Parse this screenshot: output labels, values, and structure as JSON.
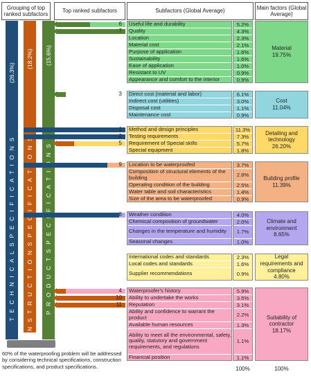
{
  "headers": {
    "grouping": "Grouping of top ranked subfactors",
    "top_ranked": "Top ranked subfactors",
    "subfactors": "Subfactors (Global Average)",
    "main": "Main factors (Global Average)"
  },
  "specs": [
    {
      "label": "T E C H N I C A L   S P E C I F I C A T I O N S",
      "pct": "(26.3%)",
      "color": "#1f4e79"
    },
    {
      "label": "C O N S T R U C T I O N   S P E C I F I C A T I O N S",
      "pct": "(18.2%)",
      "color": "#c55a11"
    },
    {
      "label": "P R O D U C T   S P E C I F I C A T I O N S",
      "pct": "(15.6%)",
      "color": "#548235"
    }
  ],
  "groups": [
    {
      "id": "material",
      "color": "#7ed88a",
      "main": "Material\n19.75%",
      "rows": [
        {
          "name": "Useful life and durability",
          "pct": "5.2%",
          "rank": "6"
        },
        {
          "name": "Quality",
          "pct": "4.3%",
          "rank": "7"
        },
        {
          "name": "Location",
          "pct": "2.3%"
        },
        {
          "name": "Material cost",
          "pct": "2.1%"
        },
        {
          "name": "Purpose of application",
          "pct": "1.6%"
        },
        {
          "name": "Sustainability",
          "pct": "1.6%"
        },
        {
          "name": "Ease of application",
          "pct": "1.0%"
        },
        {
          "name": "Resistant to UV",
          "pct": "0.9%"
        },
        {
          "name": "Appearance and comfort to the interior",
          "pct": "0.9%"
        }
      ]
    },
    {
      "id": "cost",
      "color": "#8fd6de",
      "main": "Cost\n11.04%",
      "rows": [
        {
          "name": "Direct cost (material and labor)",
          "pct": "6.1%",
          "rank": "3"
        },
        {
          "name": "Indirect cost (utilities)",
          "pct": "3.0%"
        },
        {
          "name": "Disposal cost",
          "pct": "1.1%"
        },
        {
          "name": "Maintenance cost",
          "pct": "0.9%"
        }
      ]
    },
    {
      "id": "detailing",
      "color": "#ffd966",
      "main": "Detailing and\ntechnology\n26.20%",
      "rows": [
        {
          "name": "Method and design principles",
          "pct": "11.3%",
          "rank": "1"
        },
        {
          "name": "Testing requirements",
          "pct": "7.3%",
          "rank": "2"
        },
        {
          "name": "Requirement of Special skills",
          "pct": "5.7%",
          "rank": "5"
        },
        {
          "name": "Special equipment",
          "pct": "1.8%"
        }
      ]
    },
    {
      "id": "building",
      "color": "#f4b183",
      "main": "Building profile\n11.39%",
      "rows": [
        {
          "name": "Location to be waterproofed",
          "pct": "3.7%",
          "rank": "9"
        },
        {
          "name": "Composition of structural elements of the building",
          "pct": "2.8%"
        },
        {
          "name": "Operating condition of the building",
          "pct": "2.5%"
        },
        {
          "name": "Water table and soil characteristics",
          "pct": "1.4%"
        },
        {
          "name": "Size of the area to be waterproofed",
          "pct": "0.9%"
        }
      ]
    },
    {
      "id": "climate",
      "color": "#b4a7ef",
      "main": "Climate and\nenvironment\n8.65%",
      "rows": [
        {
          "name": "Weather condition",
          "pct": "4.0%",
          "rank": "8"
        },
        {
          "name": "Chemical composition of groundwater",
          "pct": "2.0%"
        },
        {
          "name": "Changes in the temperature and humidity",
          "pct": "1.7%"
        },
        {
          "name": "Seasonal changes",
          "pct": "1.0%"
        }
      ]
    },
    {
      "id": "legal",
      "color": "#fff099",
      "main": "Legal\nrequirements and\ncompliance\n4.80%",
      "rows": [
        {
          "name": "International codes and standards",
          "pct": "2.3%"
        },
        {
          "name": "Local codes and standards",
          "pct": "1.6%"
        },
        {
          "name": "Supplier recommendations",
          "pct": "0.9%"
        }
      ]
    },
    {
      "id": "contractor",
      "color": "#f9a8c4",
      "main": "Suitability of\ncontractor\n18.17%",
      "rows": [
        {
          "name": "Waterproofer's history",
          "pct": "5.9%",
          "rank": "4"
        },
        {
          "name": "Ability to undertake the works",
          "pct": "3.5%",
          "rank": "10"
        },
        {
          "name": "Reputation",
          "pct": "3.1%",
          "rank": "11"
        },
        {
          "name": "Ability and confidence to warrant the product",
          "pct": "2.2%"
        },
        {
          "name": "Available human resources",
          "pct": "1.3%"
        },
        {
          "name": "Ability to meet all the environmental, safety, quality, statutory and government requirements, and regulations",
          "pct": "1.1%"
        },
        {
          "name": "Financial position",
          "pct": "1.1%"
        }
      ]
    }
  ],
  "totals": {
    "sub": "100%",
    "main": "100%"
  },
  "note": "60% of the waterproofing problem will be addressed by considering technical specifications, construction specifications, and product specifications."
}
